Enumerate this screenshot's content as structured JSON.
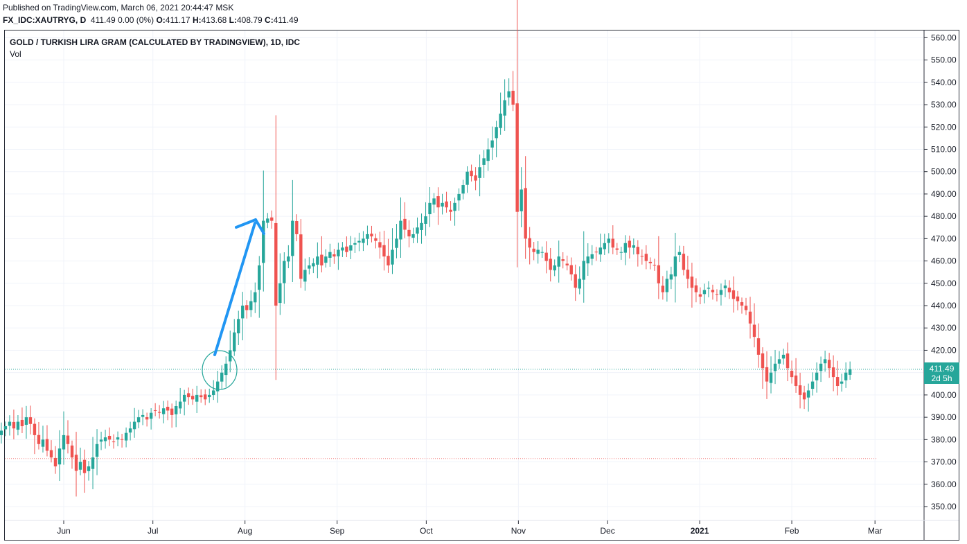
{
  "header": {
    "published": "Published on TradingView.com, March 06, 2021 20:44:47 MSK",
    "symbol": "FX_IDC:XAUTRYG, D",
    "last": "411.49",
    "change": "0.00 (0%)",
    "o_label": "O:",
    "o_value": "411.17",
    "h_label": "H:",
    "h_value": "413.68",
    "l_label": "L:",
    "l_value": "408.79",
    "c_label": "C:",
    "c_value": "411.49"
  },
  "legend": {
    "title": "GOLD / TURKISH LIRA GRAM (CALCULATED BY TRADINGVIEW), 1D, IDC",
    "volume": "Vol"
  },
  "price_badge": {
    "price": "411.49",
    "countdown": "2d 5h"
  },
  "colors": {
    "up": "#26a69a",
    "down": "#ef5350",
    "grid": "#f0f3fa",
    "annotation": "#2196f3"
  },
  "chart_data": {
    "type": "candlestick",
    "title": "GOLD / TURKISH LIRA GRAM (CALCULATED BY TRADINGVIEW), 1D, IDC",
    "ylim": [
      345,
      563
    ],
    "y_ticks": [
      350,
      360,
      370,
      380,
      390,
      400,
      410,
      420,
      430,
      440,
      450,
      460,
      470,
      480,
      490,
      500,
      510,
      520,
      530,
      540,
      550,
      560
    ],
    "x_ticks": [
      {
        "label": "Jun",
        "date": "2020-06-01"
      },
      {
        "label": "Jul",
        "date": "2020-07-01"
      },
      {
        "label": "Aug",
        "date": "2020-08-01"
      },
      {
        "label": "Sep",
        "date": "2020-09-01"
      },
      {
        "label": "Oct",
        "date": "2020-10-01"
      },
      {
        "label": "Nov",
        "date": "2020-11-01"
      },
      {
        "label": "Dec",
        "date": "2020-12-01"
      },
      {
        "label": "2021",
        "date": "2021-01-01",
        "bold": true
      },
      {
        "label": "Feb",
        "date": "2021-02-01"
      },
      {
        "label": "Mar",
        "date": "2021-03-01"
      }
    ],
    "grid": true,
    "last_price": 411.49,
    "horizontal_line": 371.5,
    "start_date": "2020-05-11",
    "closes": [
      384,
      386,
      388,
      385,
      388,
      386,
      390,
      387,
      382,
      378,
      380,
      375,
      372,
      368,
      376,
      382,
      378,
      372,
      366,
      370,
      365,
      368,
      372,
      378,
      380,
      381,
      380,
      379,
      381,
      380,
      383,
      385,
      388,
      390,
      391,
      389,
      392,
      393,
      392,
      394,
      393,
      391,
      395,
      397,
      400,
      399,
      398,
      400,
      399,
      398,
      400,
      402,
      406,
      410,
      414,
      420,
      428,
      434,
      440,
      438,
      442,
      446,
      458,
      478,
      479,
      478,
      440,
      450,
      460,
      462,
      478,
      472,
      452,
      456,
      458,
      459,
      462,
      458,
      462,
      464,
      462,
      465,
      466,
      464,
      467,
      468,
      469,
      470,
      472,
      471,
      469,
      466,
      462,
      458,
      465,
      470,
      478,
      474,
      471,
      472,
      475,
      477,
      480,
      486,
      488,
      484,
      486,
      484,
      482,
      486,
      490,
      494,
      500,
      498,
      496,
      502,
      506,
      510,
      514,
      520,
      526,
      532,
      536,
      530,
      482,
      492,
      470,
      466,
      464,
      465,
      464,
      460,
      456,
      458,
      462,
      460,
      458,
      454,
      448,
      452,
      460,
      462,
      463,
      464,
      466,
      468,
      470,
      466,
      465,
      464,
      468,
      466,
      467,
      463,
      462,
      460,
      459,
      458,
      450,
      446,
      452,
      454,
      462,
      464,
      456,
      452,
      448,
      446,
      444,
      447,
      448,
      446,
      445,
      447,
      449,
      446,
      443,
      442,
      440,
      438,
      432,
      426,
      418,
      412,
      406,
      410,
      414,
      416,
      418,
      412,
      408,
      404,
      400,
      398,
      402,
      406,
      410,
      414,
      416,
      412,
      408,
      404,
      406,
      410,
      411.49
    ]
  }
}
